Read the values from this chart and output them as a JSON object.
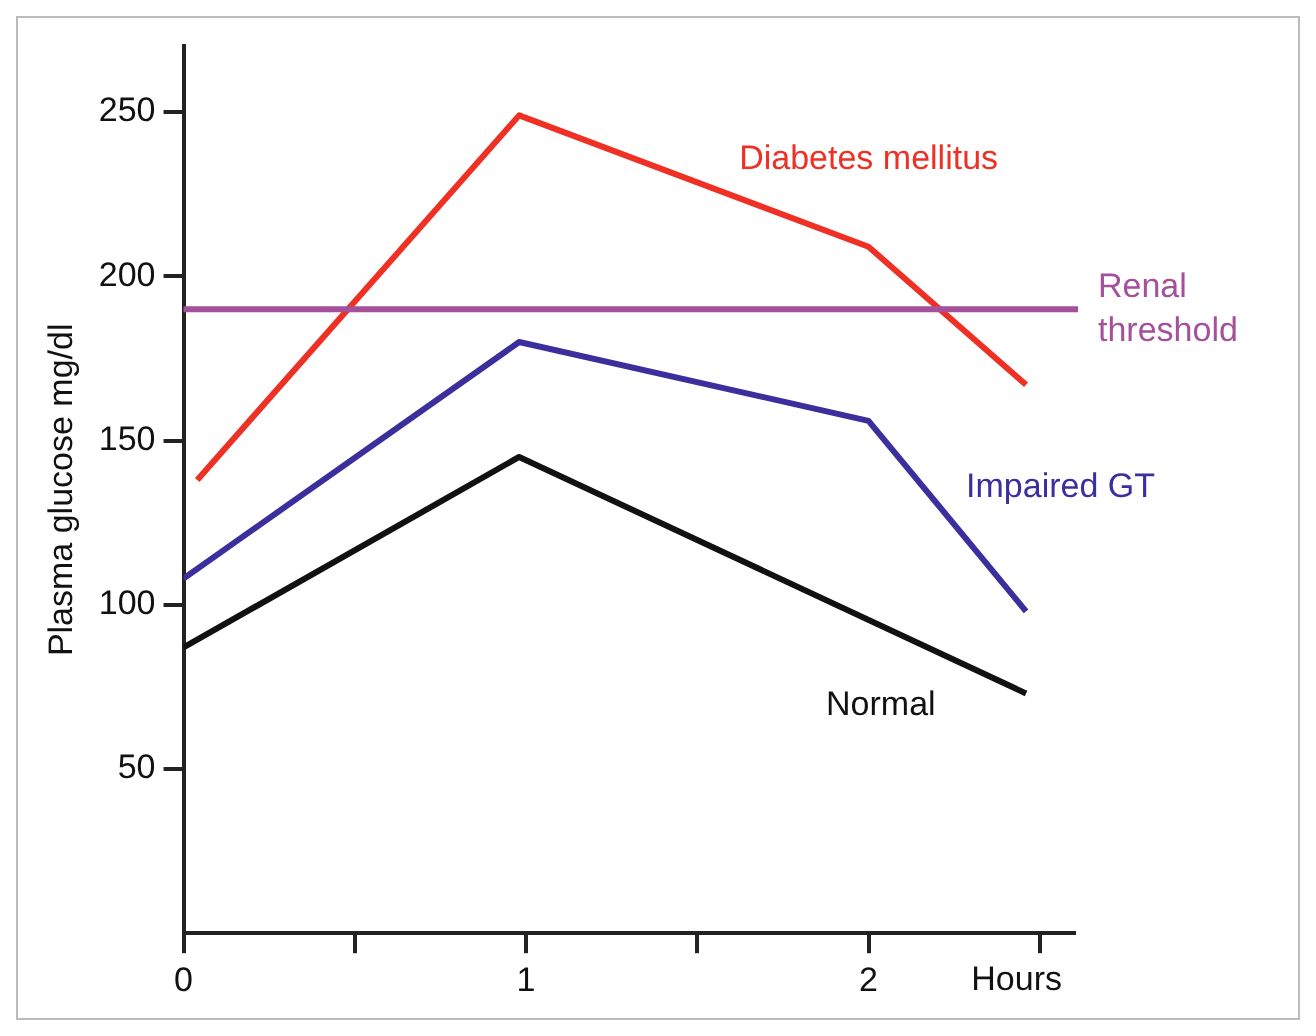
{
  "chart_data": {
    "type": "line",
    "xlabel": "Hours",
    "ylabel": "Plasma glucose mg/dl",
    "xlim": [
      0,
      2.6
    ],
    "xticks": [
      0,
      {
        "value": 0.5,
        "label": null
      },
      1,
      {
        "value": 1.5,
        "label": null
      },
      2,
      {
        "value": 2.5,
        "label": null
      }
    ],
    "ylim": [
      0,
      270
    ],
    "yticks": [
      50,
      100,
      150,
      200,
      250
    ],
    "grid": false,
    "legend": false,
    "marker": "none",
    "line_style": "solid",
    "series": [
      {
        "name": "Diabetes mellitus",
        "color": "#ee3124",
        "x": [
          0.04,
          0.98,
          2.0,
          2.46
        ],
        "values": [
          138,
          249,
          209,
          167
        ]
      },
      {
        "name": "Impaired GT",
        "color": "#3b2f9e",
        "x": [
          0,
          0.98,
          2.0,
          2.46
        ],
        "values": [
          108,
          180,
          156,
          98
        ]
      },
      {
        "name": "Normal",
        "color": "#111111",
        "x": [
          0,
          0.98,
          2.46
        ],
        "values": [
          87,
          145,
          73
        ]
      }
    ],
    "ref_lines": [
      {
        "axis": "y",
        "value": 190,
        "label": "Renal threshold",
        "color": "#a4509a"
      }
    ]
  }
}
